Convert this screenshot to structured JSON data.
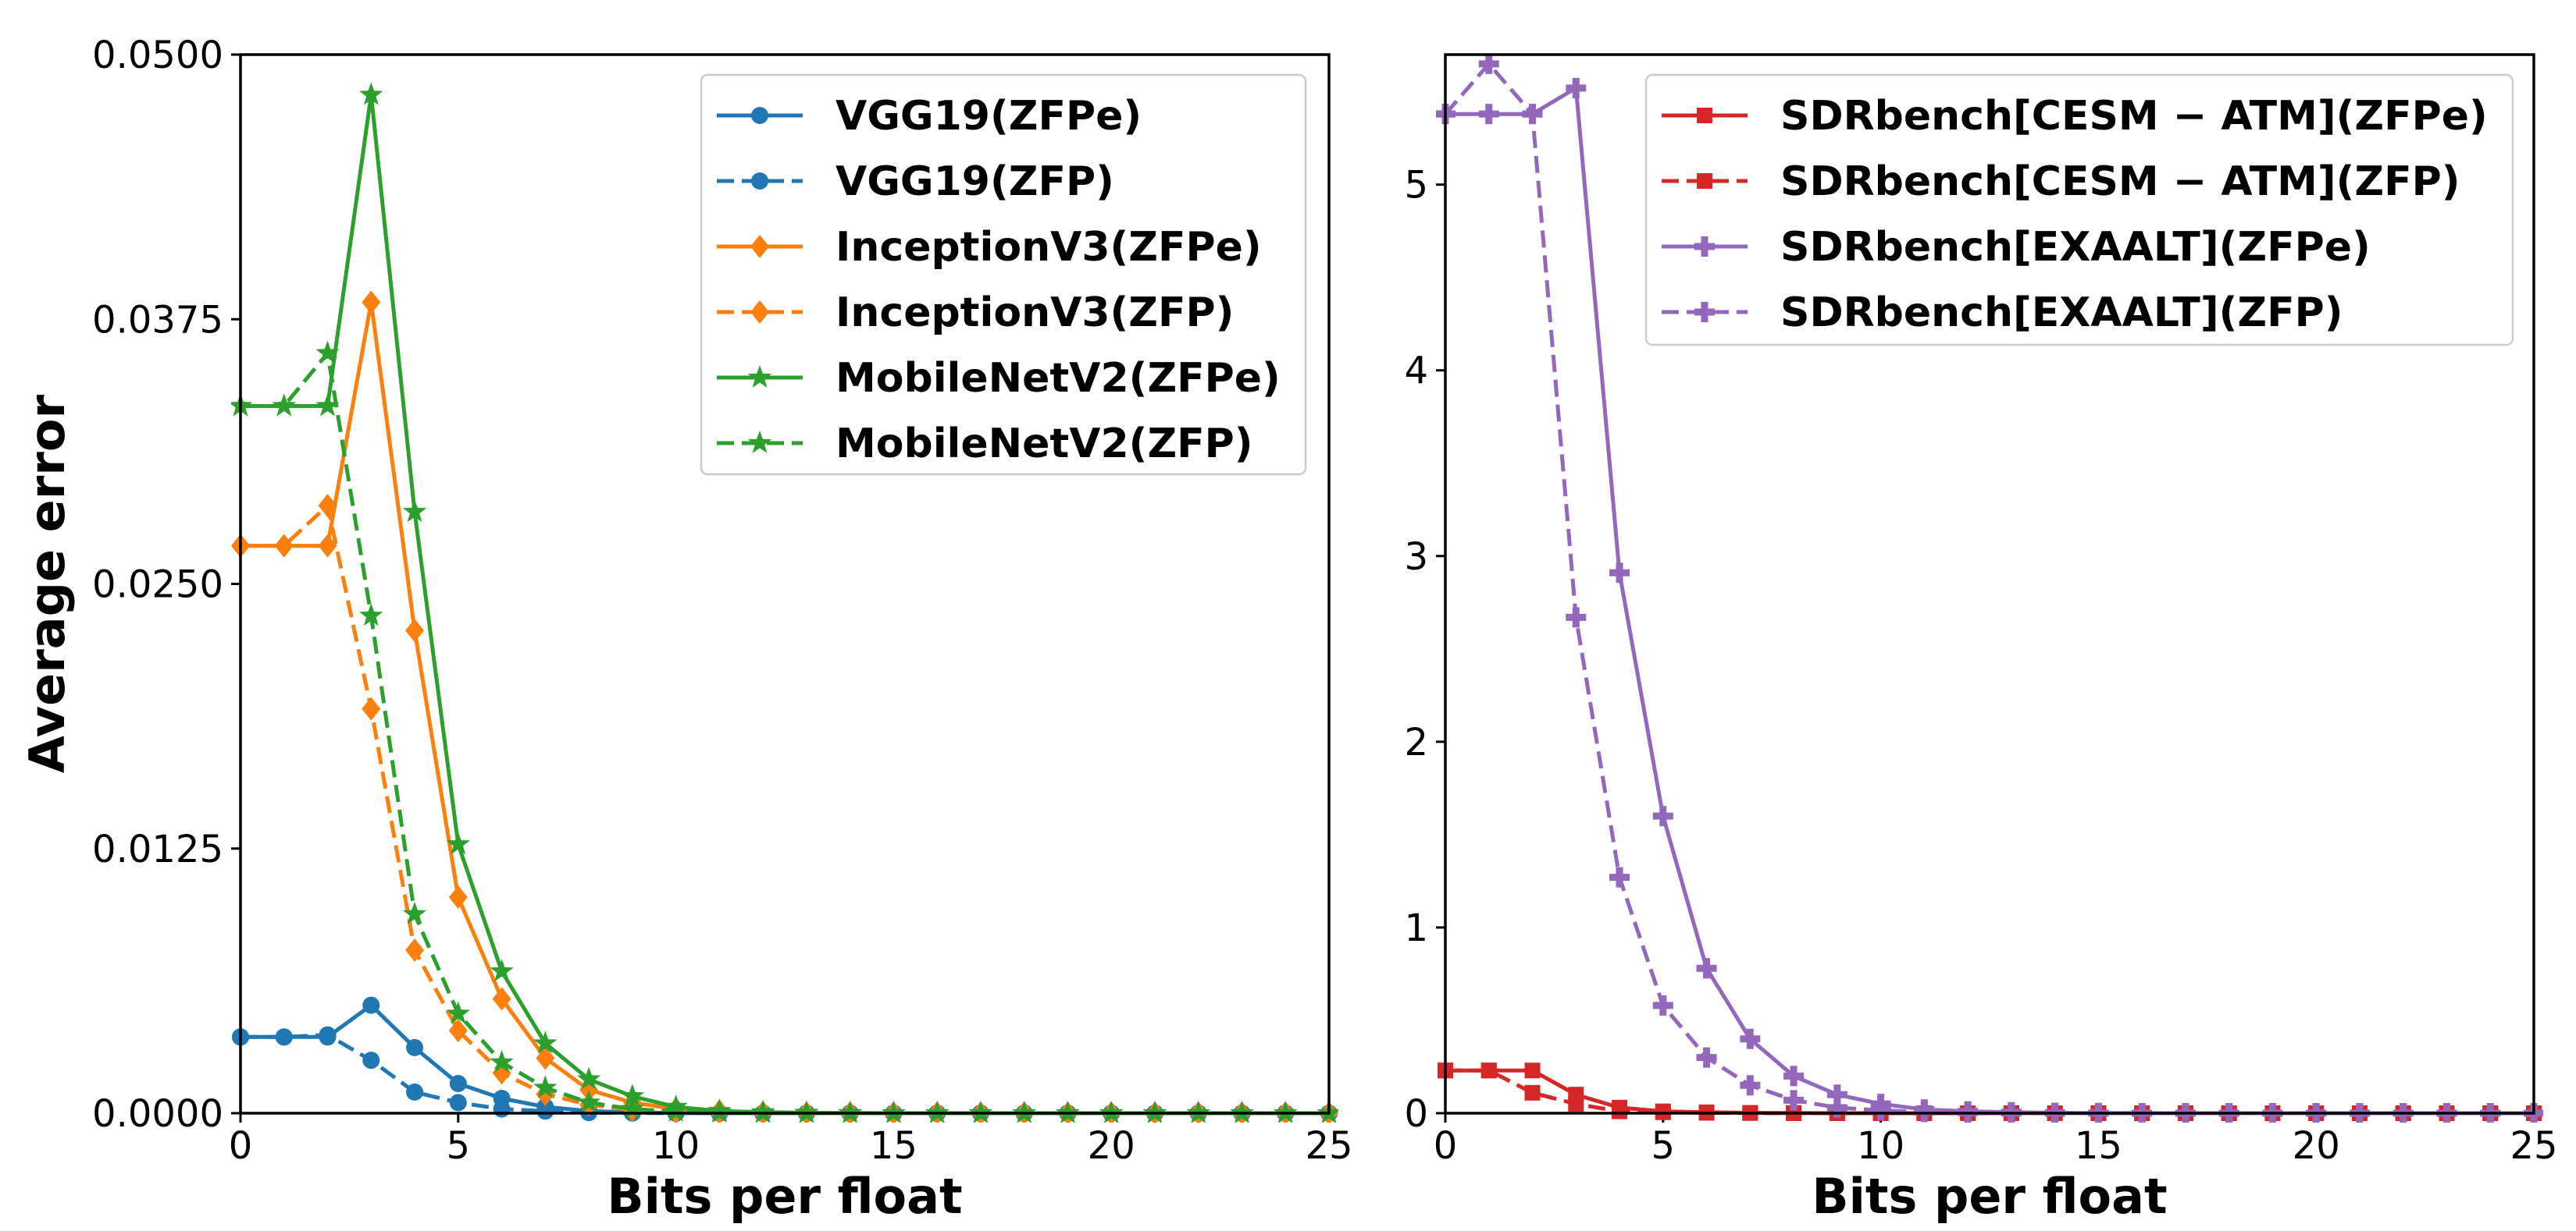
{
  "chart_data": [
    {
      "type": "line",
      "title": "",
      "xlabel": "Bits per float",
      "ylabel": "Average error",
      "xlim": [
        0,
        25
      ],
      "ylim": [
        0,
        0.05
      ],
      "xticks": [
        0,
        5,
        10,
        15,
        20,
        25
      ],
      "yticks": [
        0,
        0.0125,
        0.025,
        0.0375,
        0.05
      ],
      "xtick_labels": [
        "0",
        "5",
        "10",
        "15",
        "20",
        "25"
      ],
      "ytick_labels": [
        "0.0000",
        "0.0125",
        "0.0250",
        "0.0375",
        "0.0500"
      ],
      "legend_position": "top-right",
      "x": [
        0,
        1,
        2,
        3,
        4,
        5,
        6,
        7,
        8,
        9,
        10,
        11,
        12,
        13,
        14,
        15,
        16,
        17,
        18,
        19,
        20,
        21,
        22,
        23,
        24,
        25
      ],
      "series": [
        {
          "name": "VGG19(ZFPe)",
          "color": "#1f77b4",
          "linestyle": "solid",
          "marker": "circle",
          "values": [
            0.0036,
            0.0036,
            0.0036,
            0.0051,
            0.0031,
            0.0014,
            0.0007,
            0.0003,
            0.0001,
            4e-05,
            1e-05,
            0,
            0,
            0,
            0,
            0,
            0,
            0,
            0,
            0,
            0,
            0,
            0,
            0,
            0,
            0
          ]
        },
        {
          "name": "VGG19(ZFP)",
          "color": "#1f77b4",
          "linestyle": "dashed",
          "marker": "circle",
          "values": [
            0.0036,
            0.0036,
            0.0037,
            0.0025,
            0.001,
            0.0005,
            0.0002,
            0.0001,
            3e-05,
            1e-05,
            0,
            0,
            0,
            0,
            0,
            0,
            0,
            0,
            0,
            0,
            0,
            0,
            0,
            0,
            0,
            0
          ]
        },
        {
          "name": "InceptionV3(ZFPe)",
          "color": "#ff7f0e",
          "linestyle": "solid",
          "marker": "diamond",
          "values": [
            0.0268,
            0.0268,
            0.0268,
            0.0383,
            0.0228,
            0.0102,
            0.0054,
            0.0026,
            0.0011,
            0.0005,
            0.0002,
            0.0001,
            3e-05,
            1e-05,
            0,
            0,
            0,
            0,
            0,
            0,
            0,
            0,
            0,
            0,
            0,
            0
          ]
        },
        {
          "name": "InceptionV3(ZFP)",
          "color": "#ff7f0e",
          "linestyle": "dashed",
          "marker": "diamond",
          "values": [
            0.0268,
            0.0268,
            0.0287,
            0.0191,
            0.0077,
            0.0039,
            0.0019,
            0.0009,
            0.0004,
            0.00015,
            6e-05,
            2e-05,
            1e-05,
            0,
            0,
            0,
            0,
            0,
            0,
            0,
            0,
            0,
            0,
            0,
            0,
            0
          ]
        },
        {
          "name": "MobileNetV2(ZFPe)",
          "color": "#2ca02c",
          "linestyle": "solid",
          "marker": "star",
          "values": [
            0.0334,
            0.0334,
            0.0334,
            0.0481,
            0.0284,
            0.0127,
            0.0067,
            0.0033,
            0.0016,
            0.0008,
            0.0003,
            0.0001,
            5e-05,
            2e-05,
            1e-05,
            0,
            0,
            0,
            0,
            0,
            0,
            0,
            0,
            0,
            0,
            0
          ]
        },
        {
          "name": "MobileNetV2(ZFP)",
          "color": "#2ca02c",
          "linestyle": "dashed",
          "marker": "star",
          "values": [
            0.0334,
            0.0334,
            0.0359,
            0.0235,
            0.0094,
            0.0047,
            0.0024,
            0.0012,
            0.0005,
            0.0002,
            8e-05,
            3e-05,
            1e-05,
            0,
            0,
            0,
            0,
            0,
            0,
            0,
            0,
            0,
            0,
            0,
            0,
            0
          ]
        }
      ]
    },
    {
      "type": "line",
      "title": "",
      "xlabel": "Bits per float",
      "ylabel": "",
      "xlim": [
        0,
        25
      ],
      "ylim": [
        0,
        5.7
      ],
      "xticks": [
        0,
        5,
        10,
        15,
        20,
        25
      ],
      "yticks": [
        0,
        1,
        2,
        3,
        4,
        5
      ],
      "xtick_labels": [
        "0",
        "5",
        "10",
        "15",
        "20",
        "25"
      ],
      "ytick_labels": [
        "0",
        "1",
        "2",
        "3",
        "4",
        "5"
      ],
      "legend_position": "top-right",
      "x": [
        0,
        1,
        2,
        3,
        4,
        5,
        6,
        7,
        8,
        9,
        10,
        11,
        12,
        13,
        14,
        15,
        16,
        17,
        18,
        19,
        20,
        21,
        22,
        23,
        24,
        25
      ],
      "series": [
        {
          "name": "SDRbench[CESM − ATM](ZFPe)",
          "color": "#d62728",
          "linestyle": "solid",
          "marker": "square",
          "values": [
            0.23,
            0.23,
            0.23,
            0.1,
            0.03,
            0.01,
            0.005,
            0.002,
            0.001,
            0,
            0,
            0,
            0,
            0,
            0,
            0,
            0,
            0,
            0,
            0,
            0,
            0,
            0,
            0,
            0,
            0
          ]
        },
        {
          "name": "SDRbench[CESM − ATM](ZFP)",
          "color": "#d62728",
          "linestyle": "dashed",
          "marker": "square",
          "values": [
            0.23,
            0.23,
            0.11,
            0.05,
            0.01,
            0.005,
            0.002,
            0.001,
            0,
            0,
            0,
            0,
            0,
            0,
            0,
            0,
            0,
            0,
            0,
            0,
            0,
            0,
            0,
            0,
            0,
            0
          ]
        },
        {
          "name": "SDRbench[EXAALT](ZFPe)",
          "color": "#9467bd",
          "linestyle": "solid",
          "marker": "plus",
          "values": [
            5.38,
            5.38,
            5.38,
            5.52,
            2.91,
            1.6,
            0.78,
            0.4,
            0.2,
            0.1,
            0.05,
            0.02,
            0.01,
            0.005,
            0.002,
            0.001,
            0,
            0,
            0,
            0,
            0,
            0,
            0,
            0,
            0,
            0
          ]
        },
        {
          "name": "SDRbench[EXAALT](ZFP)",
          "color": "#9467bd",
          "linestyle": "dashed",
          "marker": "plus",
          "values": [
            5.38,
            5.65,
            5.38,
            2.67,
            1.27,
            0.58,
            0.3,
            0.15,
            0.07,
            0.03,
            0.015,
            0.007,
            0.003,
            0.001,
            0,
            0,
            0,
            0,
            0,
            0,
            0,
            0,
            0,
            0,
            0,
            0
          ]
        }
      ]
    }
  ]
}
